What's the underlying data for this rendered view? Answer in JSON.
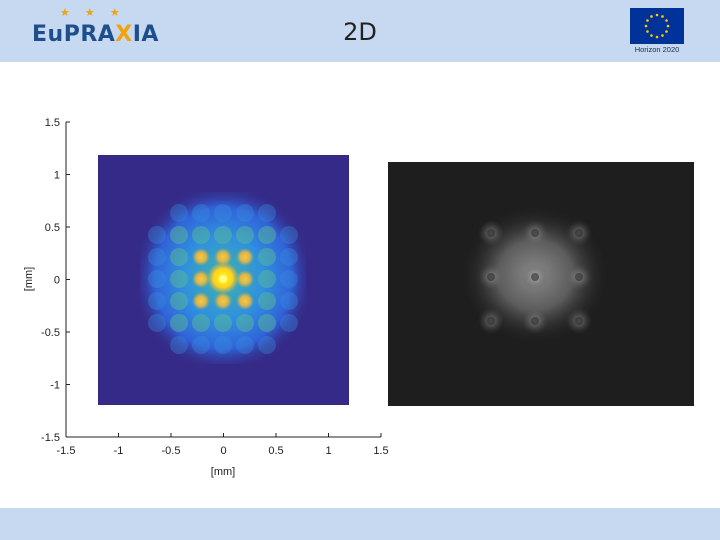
{
  "header": {
    "logo_text_main": "EuPRA",
    "logo_text_accent": "X",
    "logo_text_end": "IA",
    "logo_stars": "★ ★ ★",
    "title": "2D",
    "eu_caption": "Horizon 2020"
  },
  "colors": {
    "header_band": "#c6d9f0",
    "plot_background": "#352a87",
    "photo_background": "#1e1e1e",
    "logo_blue": "#1f4e8c",
    "logo_orange": "#f0a30a"
  },
  "left_plot": {
    "xlabel": "[mm]",
    "ylabel": "[mm]",
    "xticks": [
      "-1.5",
      "-1",
      "-0.5",
      "0",
      "0.5",
      "1",
      "1.5"
    ],
    "yticks": [
      "1.5",
      "1",
      "0.5",
      "0",
      "-0.5",
      "-1",
      "-1.5"
    ],
    "xlim": [
      -1.5,
      1.5
    ],
    "ylim": [
      -1.5,
      1.5
    ],
    "image_extent_mm": [
      -1.2,
      1.2
    ]
  },
  "right_image": {
    "kind": "grayscale camera image of 3x3 beamlet grid"
  }
}
